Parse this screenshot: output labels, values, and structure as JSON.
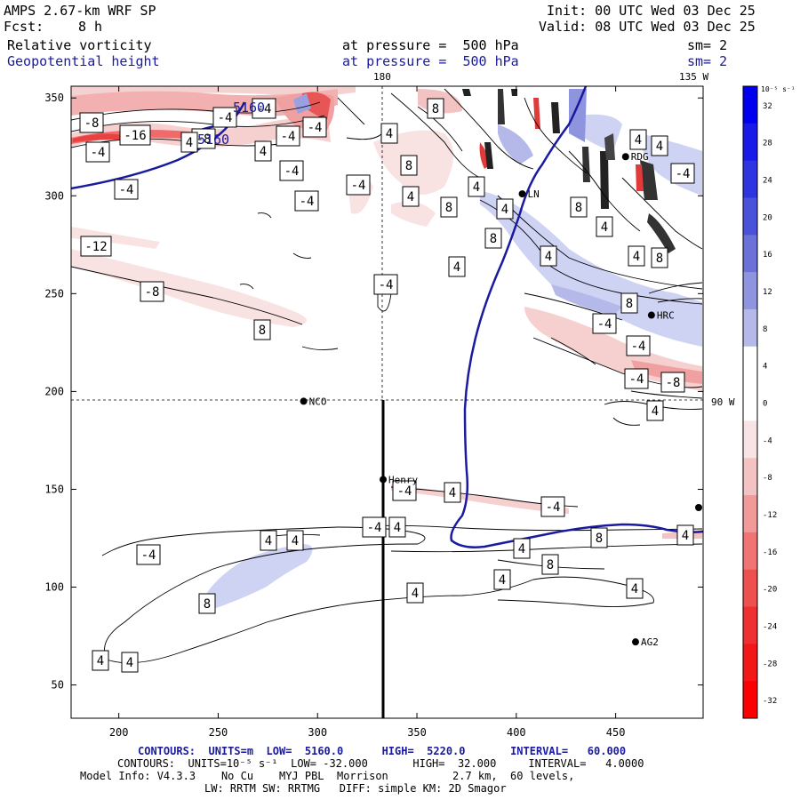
{
  "header": {
    "model": "AMPS 2.67-km WRF SP",
    "fcst_label": "Fcst:",
    "fcst_value": "8 h",
    "init": "Init: 00 UTC Wed 03 Dec 25",
    "valid": "Valid: 08 UTC Wed 03 Dec 25",
    "field1": "Relative vorticity",
    "field1_level": "at pressure =  500 hPa",
    "field1_sm": "sm= 2",
    "field2": "Geopotential height",
    "field2_level": "at pressure =  500 hPa",
    "field2_sm": "sm= 2"
  },
  "map_labels": {
    "lon_180": "180",
    "lon_135w": "135 W",
    "lon_90w": "90 W"
  },
  "stations": [
    {
      "name": "NCO",
      "x": 293,
      "y": 195
    },
    {
      "name": "Henry",
      "x": 333,
      "y": 155
    },
    {
      "name": "HRC",
      "x": 468,
      "y": 239
    },
    {
      "name": "AG2",
      "x": 460,
      "y": 72
    },
    {
      "name": "RDG",
      "x": 455,
      "y": 320
    },
    {
      "name": "LN",
      "x": 403,
      "y": 301
    }
  ],
  "axes": {
    "x_ticks": [
      "200",
      "250",
      "300",
      "350",
      "400",
      "450"
    ],
    "y_ticks": [
      "50",
      "100",
      "150",
      "200",
      "250",
      "300",
      "350"
    ],
    "xlim": [
      176,
      494
    ],
    "ylim": [
      33,
      356
    ]
  },
  "height_contours": [
    "5160",
    "5160"
  ],
  "vorticity_labels": [
    "-8",
    "-16",
    "-4",
    "-4",
    "-12",
    "-8",
    "8",
    "-4",
    "-8",
    "-4",
    "4",
    "-4",
    "-4",
    "-4",
    "4",
    "-4",
    "-4",
    "4",
    "8",
    "4",
    "8",
    "-4",
    "8",
    "4",
    "8",
    "4",
    "4",
    "4",
    "8",
    "4",
    "4",
    "8",
    "8",
    "4",
    "4",
    "-4",
    "-4",
    "-4",
    "-4",
    "-8",
    "4",
    "-4",
    "4",
    "-4",
    "-4",
    "4",
    "4",
    "4",
    "-4",
    "4",
    "8",
    "8",
    "4",
    "4",
    "4",
    "4",
    "8",
    "4",
    "4"
  ],
  "colorbar": {
    "units": "10⁻⁵ s⁻¹",
    "labels": [
      "32",
      "28",
      "24",
      "20",
      "16",
      "12",
      "8",
      "4",
      "0",
      "-4",
      "-8",
      "-12",
      "-16",
      "-20",
      "-24",
      "-28",
      "-32"
    ],
    "colors": [
      "#0000ee",
      "#1a1ae8",
      "#2e34e0",
      "#4b52da",
      "#6a72d8",
      "#8e95de",
      "#b4b9ea",
      "#ffffff",
      "#ffffff",
      "#f8e4e4",
      "#f3c2c2",
      "#f29a9a",
      "#f07474",
      "#ee5050",
      "#ef3030",
      "#f31818",
      "#fa0000"
    ]
  },
  "footer": {
    "line1_contours": "CONTOURS:",
    "line1_units": "UNITS=m",
    "line1_low": "LOW=  5160.0",
    "line1_high": "HIGH=  5220.0",
    "line1_interval": "INTERVAL=   60.000",
    "line2_contours": "CONTOURS:",
    "line2_units": "UNITS=10⁻⁵ s⁻¹",
    "line2_low": "LOW= -32.000",
    "line2_high": "HIGH=  32.000",
    "line2_interval": "INTERVAL=   4.0000",
    "line3": "Model Info: V4.3.3    No Cu    MYJ PBL  Morrison          2.7 km,  60 levels,",
    "line4": "LW: RRTM SW: RRTMG   DIFF: simple KM: 2D Smagor"
  }
}
